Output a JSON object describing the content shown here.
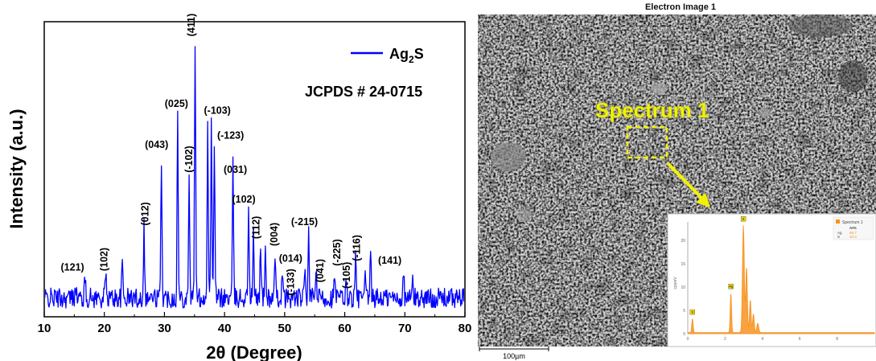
{
  "chart_data": {
    "type": "line",
    "xlabel": "2θ (Degree)",
    "ylabel": "Intensity (a.u.)",
    "xlim": [
      10,
      80
    ],
    "xticks": [
      10,
      20,
      30,
      40,
      50,
      60,
      70,
      80
    ],
    "y_ticks_shown": false,
    "grid": false,
    "legend_placement": "top-right",
    "series": [
      {
        "name": "Ag2S",
        "color": "#0000ff",
        "baseline": 2,
        "noise_amplitude": 2.2,
        "peaks": [
          {
            "x": 15.2,
            "y": 4
          },
          {
            "x": 16.8,
            "y": 4.5
          },
          {
            "x": 20.2,
            "y": 6
          },
          {
            "x": 23.0,
            "y": 8
          },
          {
            "x": 26.6,
            "y": 16
          },
          {
            "x": 29.5,
            "y": 31
          },
          {
            "x": 32.2,
            "y": 40
          },
          {
            "x": 34.1,
            "y": 28
          },
          {
            "x": 35.1,
            "y": 57
          },
          {
            "x": 37.2,
            "y": 39
          },
          {
            "x": 37.8,
            "y": 38
          },
          {
            "x": 38.3,
            "y": 35
          },
          {
            "x": 41.4,
            "y": 29
          },
          {
            "x": 44.0,
            "y": 21
          },
          {
            "x": 44.8,
            "y": 14
          },
          {
            "x": 46.0,
            "y": 12.5
          },
          {
            "x": 46.8,
            "y": 11
          },
          {
            "x": 48.4,
            "y": 8
          },
          {
            "x": 49.6,
            "y": 5
          },
          {
            "x": 53.4,
            "y": 7
          },
          {
            "x": 54.0,
            "y": 13.5
          },
          {
            "x": 55.2,
            "y": 7
          },
          {
            "x": 58.3,
            "y": 4.5
          },
          {
            "x": 60.3,
            "y": 4
          },
          {
            "x": 61.8,
            "y": 8.5
          },
          {
            "x": 63.4,
            "y": 4
          },
          {
            "x": 64.3,
            "y": 10
          },
          {
            "x": 69.8,
            "y": 5
          },
          {
            "x": 71.3,
            "y": 4
          }
        ]
      }
    ],
    "annotations": [
      {
        "text": "(121)",
        "x": 14.7,
        "y": 8,
        "rotate": false
      },
      {
        "text": "(102)",
        "x": 20.0,
        "y": 10.5,
        "rotate": true
      },
      {
        "text": "(012)",
        "x": 26.8,
        "y": 20.5,
        "rotate": true
      },
      {
        "text": "(043)",
        "x": 28.7,
        "y": 35,
        "rotate": false
      },
      {
        "text": "(025)",
        "x": 32.0,
        "y": 44,
        "rotate": false
      },
      {
        "text": "(-102)",
        "x": 34.1,
        "y": 32.5,
        "rotate": true
      },
      {
        "text": "(411)",
        "x": 34.5,
        "y": 62,
        "rotate": true
      },
      {
        "text": "(-103)",
        "x": 38.8,
        "y": 42.5,
        "rotate": false
      },
      {
        "text": "(-123)",
        "x": 41.0,
        "y": 37,
        "rotate": false
      },
      {
        "text": "(031)",
        "x": 41.8,
        "y": 29.5,
        "rotate": false
      },
      {
        "text": "(102)",
        "x": 43.2,
        "y": 23,
        "rotate": false
      },
      {
        "text": "(112)",
        "x": 45.3,
        "y": 17.5,
        "rotate": true
      },
      {
        "text": "(004)",
        "x": 48.3,
        "y": 16,
        "rotate": true
      },
      {
        "text": "(014)",
        "x": 51.0,
        "y": 10,
        "rotate": false
      },
      {
        "text": "(-133)",
        "x": 51.0,
        "y": 5.5,
        "rotate": true
      },
      {
        "text": "(-215)",
        "x": 53.3,
        "y": 18,
        "rotate": false
      },
      {
        "text": "(041)",
        "x": 55.9,
        "y": 8,
        "rotate": true
      },
      {
        "text": "(-225)",
        "x": 58.7,
        "y": 12,
        "rotate": true
      },
      {
        "text": "(-105)",
        "x": 60.3,
        "y": 7,
        "rotate": true
      },
      {
        "text": "(-116)",
        "x": 62.0,
        "y": 13,
        "rotate": true
      },
      {
        "text": "(141)",
        "x": 67.5,
        "y": 9.5,
        "rotate": false
      }
    ],
    "legend_label": "Ag",
    "legend_subscript": "2",
    "legend_suffix": "S",
    "reference_text": "JCPDS # 24-0715"
  },
  "sem": {
    "title": "Electron Image 1",
    "spectrum_label": "Spectrum 1",
    "scale_bar": "100µm",
    "highlight_color": "#f2f200"
  },
  "eds_inset": {
    "legend_label": "Spectrum 1",
    "legend_header": "At%",
    "legend_rows": [
      {
        "element": "Ag",
        "value": "66.7"
      },
      {
        "element": "S",
        "value": "33.3"
      }
    ],
    "y_axis_label": "cps/eV",
    "yticks": [
      0,
      5,
      10,
      15,
      20
    ],
    "xticks": [
      0,
      2,
      4,
      6,
      8
    ],
    "peak_labels": [
      "S",
      "Ag",
      "S"
    ],
    "color": "#f7931e"
  }
}
